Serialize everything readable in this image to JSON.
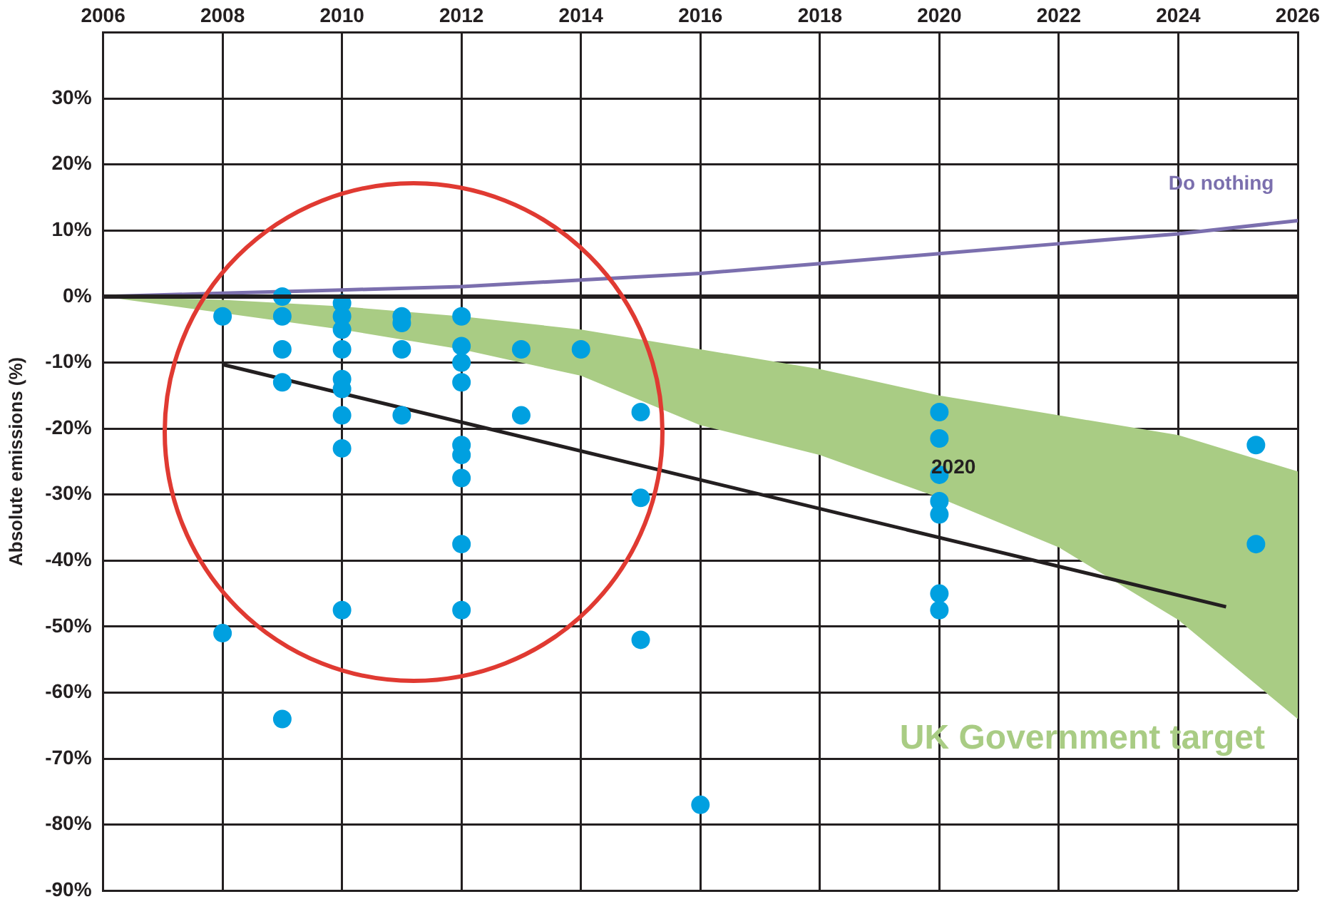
{
  "chart_data": {
    "type": "scatter",
    "ylabel": "Absolute emissions (%)",
    "xlim": [
      2006,
      2026
    ],
    "xticks": [
      2006,
      2008,
      2010,
      2012,
      2014,
      2016,
      2018,
      2020,
      2022,
      2024,
      2026
    ],
    "ylim": [
      -90,
      40
    ],
    "yticks": [
      {
        "value": 30,
        "label": "30%"
      },
      {
        "value": 20,
        "label": "20%"
      },
      {
        "value": 10,
        "label": "10%"
      },
      {
        "value": 0,
        "label": "0%"
      },
      {
        "value": -10,
        "label": "-10%"
      },
      {
        "value": -20,
        "label": "-20%"
      },
      {
        "value": -30,
        "label": "-30%"
      },
      {
        "value": -40,
        "label": "-40%"
      },
      {
        "value": -50,
        "label": "-50%"
      },
      {
        "value": -60,
        "label": "-60%"
      },
      {
        "value": -70,
        "label": "-70%"
      },
      {
        "value": -80,
        "label": "-80%"
      },
      {
        "value": -90,
        "label": "-90%"
      }
    ],
    "grid": true,
    "legend": false,
    "series": [
      {
        "type": "line",
        "name": "UK Government target",
        "color": "#a9cc84",
        "x": [
          2006,
          2008,
          2010,
          2012,
          2014,
          2016,
          2018,
          2020,
          2022,
          2024,
          2026
        ],
        "values": [
          null,
          null,
          null,
          null,
          null,
          null,
          null,
          null,
          null,
          null,
          null
        ],
        "upper": [
          0,
          -0.5,
          -1.5,
          -3,
          -5,
          -8,
          -11,
          -15,
          -18,
          -21,
          -26.5
        ],
        "lower": [
          0,
          -2.5,
          -5,
          -8,
          -12,
          -19.5,
          -24,
          -30.5,
          -38,
          -49,
          -64
        ]
      },
      {
        "type": "line",
        "name": "Do nothing",
        "color": "#7b6fae",
        "x": [
          2006,
          2008,
          2010,
          2012,
          2014,
          2016,
          2018,
          2020,
          2022,
          2024,
          2026
        ],
        "values": [
          0,
          0.5,
          1,
          1.5,
          2.5,
          3.5,
          5,
          6.5,
          8,
          9.5,
          11.5
        ]
      },
      {
        "type": "line",
        "color": "#231f20",
        "x": [
          2008,
          2024.8
        ],
        "values": [
          -10.3,
          -47
        ]
      },
      {
        "color": "#00a0e0",
        "marker": "circle",
        "x": [
          2008,
          2008,
          2009,
          2009,
          2009,
          2009,
          2009,
          2010,
          2010,
          2010,
          2010,
          2010,
          2010,
          2010,
          2010,
          2010,
          2011,
          2011,
          2011,
          2011,
          2012,
          2012,
          2012,
          2012,
          2012,
          2012,
          2012,
          2012,
          2012,
          2013,
          2013,
          2014,
          2015,
          2015,
          2015,
          2016,
          2020,
          2020,
          2020,
          2020,
          2020,
          2020,
          2020,
          2025.3,
          2025.3
        ],
        "values": [
          -3,
          -51,
          0,
          -3,
          -8,
          -13,
          -64,
          -1,
          -3,
          -5,
          -8,
          -12.5,
          -14,
          -18,
          -23,
          -47.5,
          -3,
          -4,
          -8,
          -18,
          -3,
          -7.5,
          -10,
          -13,
          -22.5,
          -24,
          -27.5,
          -37.5,
          -47.5,
          -8,
          -18,
          -8,
          -17.5,
          -30.5,
          -52,
          -77,
          -17.5,
          -21.5,
          -27,
          -31,
          -33,
          -45,
          -47.5,
          -22.5,
          -37.5
        ]
      }
    ],
    "ref_lines": [
      {
        "axis": "y",
        "value": 0,
        "color": "#231f20"
      }
    ],
    "annotations": [
      "2020"
    ]
  }
}
